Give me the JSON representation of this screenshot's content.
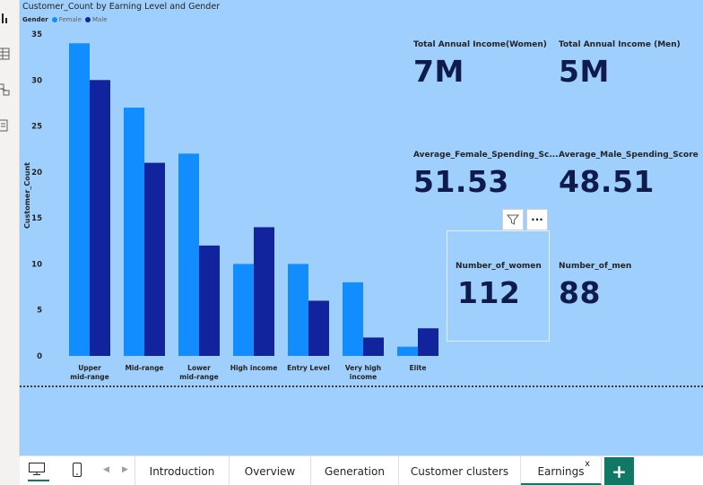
{
  "chart": {
    "title": "Customer_Count by Earning Level and Gender",
    "legend_title": "Gender",
    "legend_female": "Female",
    "legend_male": "Male"
  },
  "chart_data": {
    "type": "bar",
    "title": "Customer_Count by Earning Level and Gender",
    "xlabel": "",
    "ylabel": "Customer_Count",
    "ylim": [
      0,
      35
    ],
    "yticks": [
      0,
      5,
      10,
      15,
      20,
      25,
      30,
      35
    ],
    "categories": [
      [
        "Upper",
        "mid-range"
      ],
      [
        "Mid-range"
      ],
      [
        "Lower",
        "mid-range"
      ],
      [
        "High income"
      ],
      [
        "Entry Level"
      ],
      [
        "Very high",
        "income"
      ],
      [
        "Elite"
      ]
    ],
    "series": [
      {
        "name": "Female",
        "color": "#118dff",
        "values": [
          34,
          27,
          22,
          10,
          10,
          8,
          1
        ]
      },
      {
        "name": "Male",
        "color": "#12239e",
        "values": [
          30,
          21,
          12,
          14,
          6,
          2,
          3
        ]
      }
    ],
    "legend_position": "top-left",
    "grid": false
  },
  "cards": {
    "income_women_title": "Total Annual Income(Women)",
    "income_women_value": "7M",
    "income_men_title": "Total Annual Income (Men)",
    "income_men_value": "5M",
    "avg_female_title": "Average_Female_Spending_Sc...",
    "avg_female_value": "51.53",
    "avg_male_title": "Average_Male_Spending_Score",
    "avg_male_value": "48.51",
    "num_women_title": "Number_of_women",
    "num_women_value": "112",
    "num_men_title": "Number_of_men",
    "num_men_value": "88"
  },
  "toolbar": {
    "filter_icon": "filter-icon",
    "more_label": "···"
  },
  "tabs": {
    "introduction": "Introduction",
    "overview": "Overview",
    "generation": "Generation",
    "customer_clusters": "Customer clusters",
    "earnings": "Earnings",
    "close": "x",
    "add": "+"
  },
  "colors": {
    "canvas": "#9fcffd",
    "accent": "#117865",
    "female": "#118dff",
    "male": "#12239e"
  }
}
